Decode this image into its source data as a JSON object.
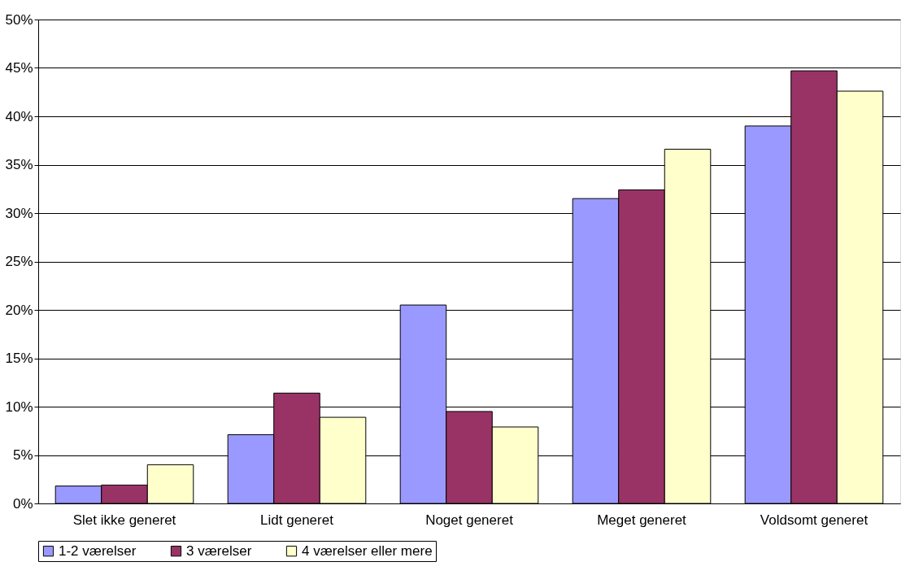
{
  "chart_data": {
    "type": "bar",
    "categories": [
      "Slet ikke generet",
      "Lidt generet",
      "Noget generet",
      "Meget generet",
      "Voldsomt generet"
    ],
    "series": [
      {
        "name": "1-2 værelser",
        "color": "#9999ff",
        "values": [
          1.8,
          7.1,
          20.5,
          31.5,
          39.0
        ]
      },
      {
        "name": "3 værelser",
        "color": "#993366",
        "values": [
          1.9,
          11.4,
          9.5,
          32.4,
          44.7
        ]
      },
      {
        "name": "4 værelser eller mere",
        "color": "#ffffcc",
        "values": [
          4.0,
          8.9,
          7.9,
          36.6,
          42.6
        ]
      }
    ],
    "ylim": [
      0,
      50
    ],
    "yticks": [
      {
        "value": 0,
        "label": "0%"
      },
      {
        "value": 5,
        "label": "5%"
      },
      {
        "value": 10,
        "label": "10%"
      },
      {
        "value": 15,
        "label": "15%"
      },
      {
        "value": 20,
        "label": "20%"
      },
      {
        "value": 25,
        "label": "25%"
      },
      {
        "value": 30,
        "label": "30%"
      },
      {
        "value": 35,
        "label": "35%"
      },
      {
        "value": 40,
        "label": "40%"
      },
      {
        "value": 45,
        "label": "45%"
      },
      {
        "value": 50,
        "label": "50%"
      }
    ],
    "grid": "y",
    "legend": "bottom"
  }
}
